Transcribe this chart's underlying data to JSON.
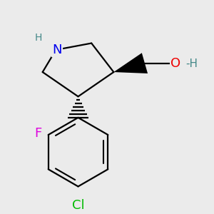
{
  "background_color": "#ebebeb",
  "atom_colors": {
    "N": "#0000ee",
    "O": "#ee0000",
    "F": "#dd00dd",
    "Cl": "#00bb00",
    "C": "#000000",
    "H": "#448888"
  },
  "bond_color": "#000000",
  "bond_width": 1.6,
  "font_size_atoms": 13
}
